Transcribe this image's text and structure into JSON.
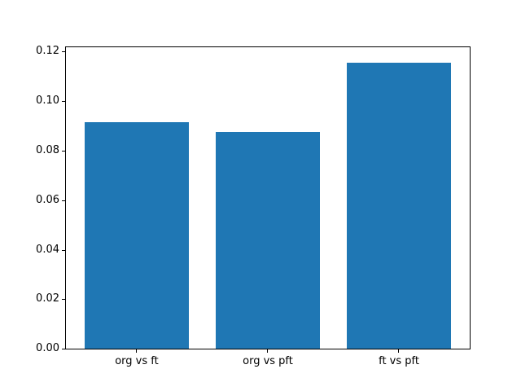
{
  "chart_data": {
    "type": "bar",
    "title": "",
    "xlabel": "",
    "ylabel": "",
    "categories": [
      "org vs ft",
      "org vs pft",
      "ft vs pft"
    ],
    "values": [
      0.0914,
      0.0876,
      0.1157
    ],
    "ylim": [
      0,
      0.1218
    ],
    "xlim": [
      -0.54,
      2.54
    ],
    "bar_width_data_units": 0.8,
    "yticks": [
      0.0,
      0.02,
      0.04,
      0.06,
      0.08,
      0.1,
      0.12
    ],
    "ytick_labels": [
      "0.00",
      "0.02",
      "0.04",
      "0.06",
      "0.08",
      "0.10",
      "0.12"
    ],
    "bar_color": "#1f77b4",
    "spine_color": "#000000",
    "background_color": "#ffffff",
    "grid": false,
    "legend": null
  }
}
